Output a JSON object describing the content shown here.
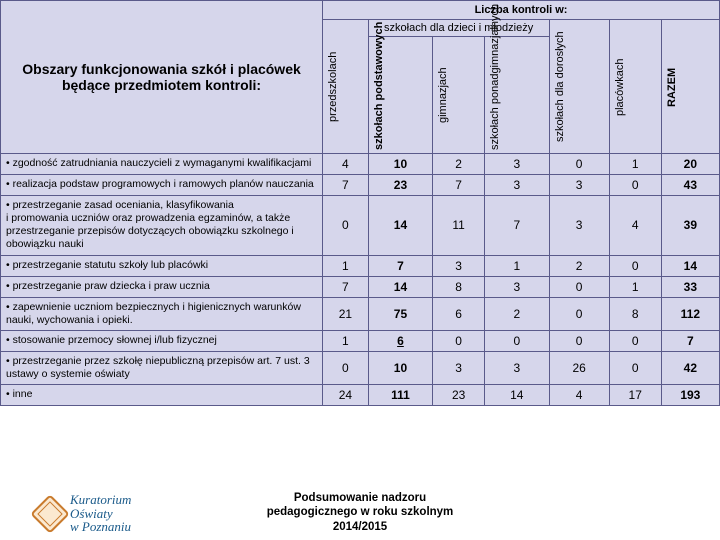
{
  "header": {
    "title_top": "Liczba kontroli w:",
    "left_title": "Obszary funkcjonowania szkół i placówek będące przedmiotem kontroli:",
    "group_top": "szkołach dla dzieci i młodzieży",
    "cols": {
      "c1": "przedszkolach",
      "c2": "szkołach podstawowych",
      "c3": "gimnazjach",
      "c4": "szkołach ponadgimnazjalnych",
      "c5": "szkołach dla dorosłych",
      "c6": "placówkach",
      "c7": "RAZEM"
    }
  },
  "rows": [
    {
      "label": "•  zgodność zatrudniania nauczycieli z wymaganymi kwalifikacjami",
      "v": [
        4,
        10,
        2,
        3,
        0,
        1,
        20
      ]
    },
    {
      "label": "•  realizacja podstaw programowych i ramowych planów nauczania",
      "v": [
        7,
        23,
        7,
        3,
        3,
        0,
        43
      ]
    },
    {
      "label": "•  przestrzeganie zasad oceniania, klasyfikowania\ni promowania uczniów oraz prowadzenia egzaminów, a także przestrzeganie przepisów dotyczących obowiązku szkolnego i obowiązku nauki",
      "v": [
        0,
        14,
        11,
        7,
        3,
        4,
        39
      ]
    },
    {
      "label": "•  przestrzeganie statutu szkoły lub placówki",
      "v": [
        1,
        7,
        3,
        1,
        2,
        0,
        14
      ]
    },
    {
      "label": "•  przestrzeganie praw dziecka i praw ucznia",
      "v": [
        7,
        14,
        8,
        3,
        0,
        1,
        33
      ]
    },
    {
      "label": "•  zapewnienie uczniom bezpiecznych i higienicznych warunków nauki, wychowania i opieki.",
      "v": [
        21,
        75,
        6,
        2,
        0,
        8,
        112
      ]
    },
    {
      "label": "•  stosowanie przemocy słownej i/lub fizycznej",
      "v": [
        1,
        6,
        0,
        0,
        0,
        0,
        7
      ],
      "underline2": true
    },
    {
      "label": "•  przestrzeganie przez szkołę niepubliczną przepisów art. 7 ust. 3 ustawy o systemie oświaty",
      "v": [
        0,
        10,
        3,
        3,
        26,
        0,
        42
      ]
    },
    {
      "label": "•  inne",
      "v": [
        24,
        111,
        23,
        14,
        4,
        17,
        193
      ]
    }
  ],
  "footer_text": "Podsumowanie nadzoru\npedagogicznego w roku szkolnym\n2014/2015",
  "logo": {
    "l1": "Kuratorium",
    "l2": "Oświaty",
    "l3": "w Poznaniu"
  },
  "style": {
    "header_bg": "#d6d6eb",
    "border_color": "#5a5a8a"
  }
}
